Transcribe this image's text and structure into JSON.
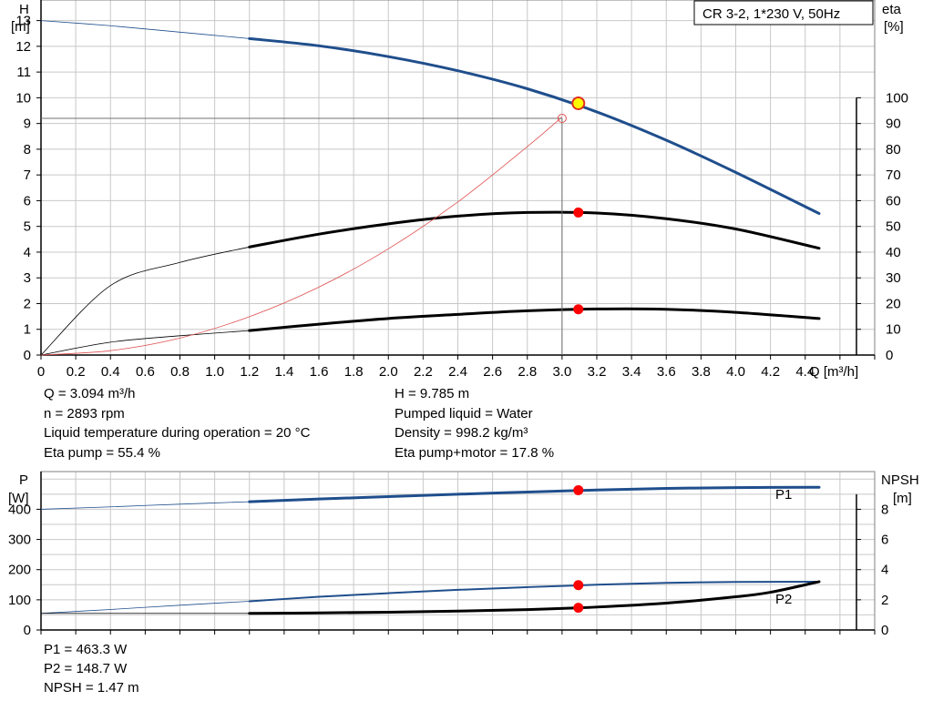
{
  "chart_data": [
    {
      "type": "line",
      "title": "CR 3-2, 1*230 V, 50Hz",
      "xlabel": "Q [m³/h]",
      "ylabel_left": [
        "H",
        "[m]"
      ],
      "ylabel_right": [
        "eta",
        "[%]"
      ],
      "xlim": [
        0,
        4.8
      ],
      "ylim_left": [
        0,
        13.8
      ],
      "ylim_right": [
        0,
        138
      ],
      "x_ticks": [
        "0",
        "0.2",
        "0.4",
        "0.6",
        "0.8",
        "1.0",
        "1.2",
        "1.4",
        "1.6",
        "1.8",
        "2.0",
        "2.2",
        "2.4",
        "2.6",
        "2.8",
        "3.0",
        "3.2",
        "3.4",
        "3.6",
        "3.8",
        "4.0",
        "4.2",
        "4.4"
      ],
      "y_ticks_left": [
        "0",
        "1",
        "2",
        "3",
        "4",
        "5",
        "6",
        "7",
        "8",
        "9",
        "10",
        "11",
        "12",
        "13"
      ],
      "y_ticks_right": [
        "0",
        "10",
        "20",
        "30",
        "40",
        "50",
        "60",
        "70",
        "80",
        "90",
        "100"
      ],
      "grid": true,
      "series": [
        {
          "key": "H",
          "color": "#1f4e8c",
          "thin_until": 1.2,
          "x": [
            0,
            0.4,
            0.8,
            1.2,
            1.6,
            2.0,
            2.4,
            2.8,
            3.2,
            3.6,
            4.0,
            4.48
          ],
          "y": [
            13.0,
            12.8,
            12.55,
            12.3,
            12.02,
            11.6,
            11.05,
            10.35,
            9.45,
            8.35,
            7.1,
            5.5
          ]
        },
        {
          "key": "eta_pump",
          "color": "#000000",
          "thin_until": 1.2,
          "axis": "right",
          "x": [
            0,
            0.4,
            0.8,
            1.2,
            1.6,
            2.0,
            2.4,
            2.8,
            3.2,
            3.6,
            4.0,
            4.48
          ],
          "y": [
            0,
            27,
            36,
            42,
            47,
            51,
            54,
            55.4,
            55.2,
            53,
            49,
            41.5
          ]
        },
        {
          "key": "eta_pump_motor",
          "color": "#000000",
          "thin_until": 1.2,
          "axis": "right",
          "width": 3,
          "x": [
            0,
            0.4,
            0.8,
            1.2,
            1.6,
            2.0,
            2.4,
            2.8,
            3.2,
            3.6,
            4.0,
            4.48
          ],
          "y": [
            0,
            5,
            7.5,
            9.5,
            12,
            14.2,
            15.8,
            17.2,
            17.9,
            17.8,
            16.6,
            14.2
          ]
        },
        {
          "key": "system",
          "color": "#e05050",
          "width": 0.8,
          "x": [
            0,
            0.4,
            0.8,
            1.2,
            1.6,
            2.0,
            2.4,
            2.8,
            3.0
          ],
          "y": [
            0,
            0.17,
            0.66,
            1.49,
            2.64,
            4.13,
            5.95,
            8.1,
            9.25
          ]
        }
      ],
      "operating_point": {
        "Q": 3.094,
        "H": 9.785,
        "eta_pump": 55.4,
        "eta_pump_motor": 17.8
      },
      "duty_marker": {
        "Q": 3.0,
        "H": 9.2
      }
    },
    {
      "type": "line",
      "ylabel_left": [
        "P",
        "[W]"
      ],
      "ylabel_right": [
        "NPSH",
        "[m]"
      ],
      "xlim": [
        0,
        4.8
      ],
      "ylim_left": [
        0,
        525
      ],
      "ylim_right": [
        0,
        10.5
      ],
      "y_ticks_left": [
        "0",
        "100",
        "200",
        "300",
        "400"
      ],
      "y_ticks_right": [
        "0",
        "2",
        "4",
        "6",
        "8"
      ],
      "grid": true,
      "series": [
        {
          "key": "P1",
          "name": "P1",
          "color": "#1f4e8c",
          "thin_until": 1.2,
          "width": 3,
          "x": [
            0,
            0.4,
            0.8,
            1.2,
            1.6,
            2.0,
            2.4,
            2.8,
            3.2,
            3.6,
            4.0,
            4.48
          ],
          "y": [
            400,
            408,
            417,
            425,
            434,
            442,
            450,
            457,
            464,
            469,
            472,
            473
          ]
        },
        {
          "key": "P2",
          "name": "P2",
          "color": "#1f4e8c",
          "thin_until": 1.2,
          "width": 2,
          "x": [
            0,
            0.4,
            0.8,
            1.2,
            1.6,
            2.0,
            2.4,
            2.8,
            3.2,
            3.6,
            4.0,
            4.48
          ],
          "y": [
            55,
            68,
            82,
            95,
            110,
            122,
            133,
            142,
            150,
            156,
            159,
            160
          ]
        },
        {
          "key": "NPSH",
          "color": "#000000",
          "thin_until": 1.2,
          "axis": "right",
          "width": 3,
          "x": [
            0,
            0.4,
            0.8,
            1.2,
            1.6,
            2.0,
            2.4,
            2.8,
            3.2,
            3.6,
            4.0,
            4.2,
            4.48
          ],
          "y": [
            1.1,
            1.1,
            1.1,
            1.1,
            1.13,
            1.18,
            1.25,
            1.35,
            1.52,
            1.78,
            2.2,
            2.5,
            3.2
          ]
        }
      ],
      "operating_point": {
        "Q": 3.094,
        "P1": 463.3,
        "P2": 148.7,
        "NPSH": 1.47
      }
    }
  ],
  "readout": {
    "q": "Q = 3.094 m³/h",
    "n": "n = 2893 rpm",
    "temp": "Liquid temperature during operation = 20 °C",
    "eta_pump": "Eta pump = 55.4 %",
    "h": "H = 9.785 m",
    "liquid": "Pumped liquid = Water",
    "density": "Density = 998.2 kg/m³",
    "eta_total": "Eta pump+motor = 17.8 %",
    "p1": "P1 = 463.3 W",
    "p2": "P2 = 148.7 W",
    "npsh": "NPSH = 1.47 m"
  },
  "colors": {
    "grid": "#c8c8c8",
    "axis": "#000000",
    "marker": "#ff0000",
    "op_marker_fill": "#ffff00"
  }
}
